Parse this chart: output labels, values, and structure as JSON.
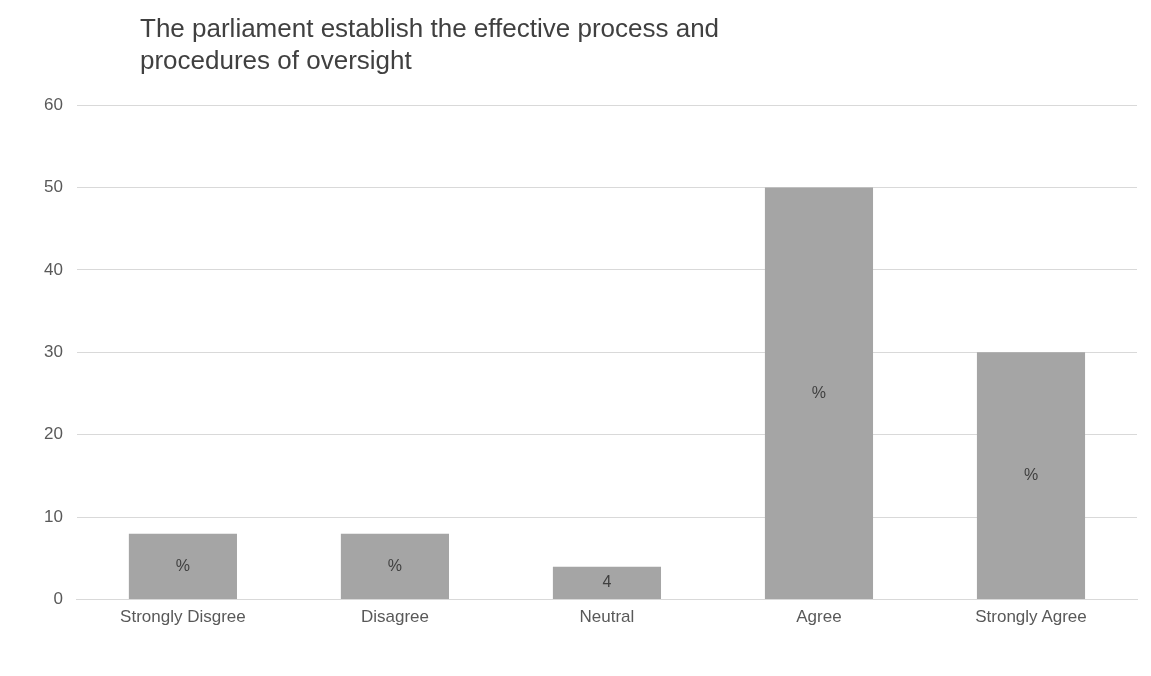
{
  "chart_data": {
    "type": "bar",
    "title": "The parliament establish the effective process and procedures of oversight",
    "categories": [
      "Strongly Disgree",
      "Disagree",
      "Neutral",
      "Agree",
      "Strongly Agree"
    ],
    "values": [
      8,
      8,
      4,
      50,
      30
    ],
    "color": "#a5a5a5",
    "value_labels": [
      "%",
      "%",
      "4",
      "%",
      "%"
    ],
    "ylim": [
      0,
      60
    ],
    "yticks": [
      0,
      10,
      20,
      30,
      40,
      50,
      60
    ],
    "grid": "y",
    "legend": false
  }
}
